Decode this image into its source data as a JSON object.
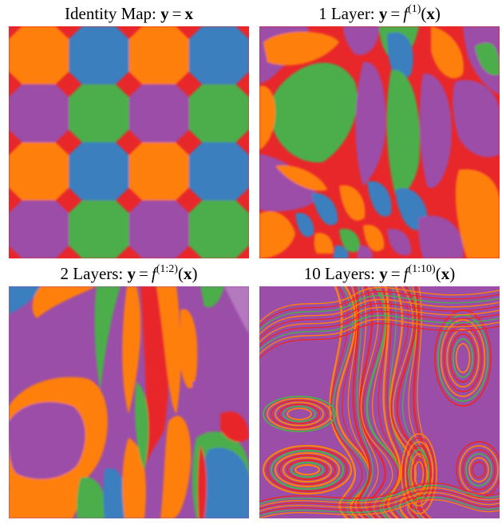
{
  "colors": {
    "red": "#e8272b",
    "orange": "#ff7f0e",
    "blue": "#3a7fbf",
    "purple": "#9b4ea8",
    "green": "#4cae4c"
  },
  "panels": [
    {
      "id": "identity",
      "title_prefix": "Identity Map: ",
      "lhs": "y",
      "eq": "=",
      "fn": "",
      "sup": "",
      "open": "",
      "arg": "x",
      "close": ""
    },
    {
      "id": "layer1",
      "title_prefix": "1 Layer: ",
      "lhs": "y",
      "eq": "=",
      "fn": "f",
      "sup": "(1)",
      "open": "(",
      "arg": "x",
      "close": ")"
    },
    {
      "id": "layer2",
      "title_prefix": "2 Layers: ",
      "lhs": "y",
      "eq": "=",
      "fn": "f",
      "sup": "(1:2)",
      "open": "(",
      "arg": "x",
      "close": ")"
    },
    {
      "id": "layer10",
      "title_prefix": "10 Layers: ",
      "lhs": "y",
      "eq": "=",
      "fn": "f",
      "sup": "(1:10)",
      "open": "(",
      "arg": "x",
      "close": ")"
    }
  ]
}
